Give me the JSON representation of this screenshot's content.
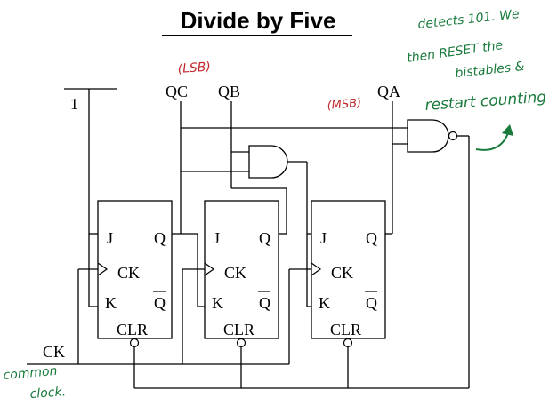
{
  "title": "Divide by Five",
  "labels": {
    "one": "1",
    "qc": "QC",
    "qb": "QB",
    "qa": "QA",
    "ck": "CK"
  },
  "flipflops": [
    {
      "j": "J",
      "q": "Q",
      "ck": "CK",
      "k": "K",
      "qbar": "Q",
      "clr": "CLR"
    },
    {
      "j": "J",
      "q": "Q",
      "ck": "CK",
      "k": "K",
      "qbar": "Q",
      "clr": "CLR"
    },
    {
      "j": "J",
      "q": "Q",
      "ck": "CK",
      "k": "K",
      "qbar": "Q",
      "clr": "CLR"
    }
  ],
  "annotations": {
    "lsb": "(LSB)",
    "msb": "(MSB)",
    "note_lines": [
      "detects 101. We",
      "then RESET the",
      "bistables &",
      "restart counting"
    ],
    "common_clock": [
      "common",
      "clock."
    ]
  },
  "colors": {
    "ink": "#000000",
    "annotation_red": "#c0282d",
    "annotation_green": "#1a7a3c"
  }
}
